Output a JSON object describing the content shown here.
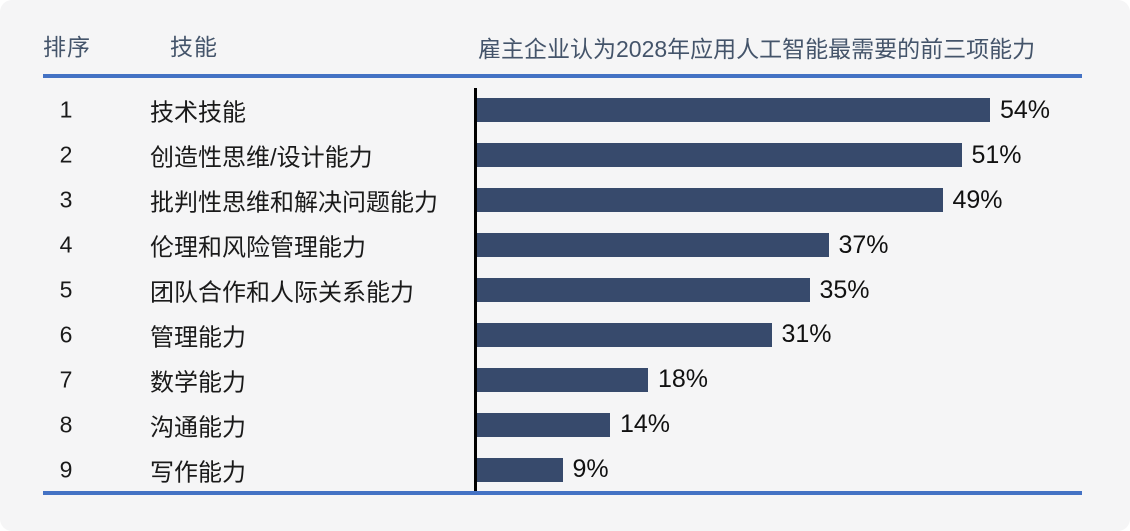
{
  "header": {
    "rank_label": "排序",
    "skill_label": "技能",
    "title": "雇主企业认为2028年应用人工智能最需要的前三项能力"
  },
  "colors": {
    "background": "#F5F5F6",
    "accent_line": "#4472C4",
    "header_text": "#44546A",
    "bar": "#374A6C",
    "axis": "#000000",
    "value_text": "#111111"
  },
  "chart_data": {
    "type": "bar",
    "orientation": "horizontal",
    "title": "雇主企业认为2028年应用人工智能最需要的前三项能力",
    "column_headers": [
      "排序",
      "技能"
    ],
    "ranks": [
      "1",
      "2",
      "3",
      "4",
      "5",
      "6",
      "7",
      "8",
      "9"
    ],
    "categories": [
      "技术技能",
      "创造性思维/设计能力",
      "批判性思维和解决问题能力",
      "伦理和风险管理能力",
      "团队合作和人际关系能力",
      "管理能力",
      "数学能力",
      "沟通能力",
      "写作能力"
    ],
    "values": [
      54,
      51,
      49,
      37,
      35,
      31,
      18,
      14,
      9
    ],
    "labels": [
      "54%",
      "51%",
      "49%",
      "37%",
      "35%",
      "31%",
      "18%",
      "14%",
      "9%"
    ],
    "value_suffix": "%",
    "xlim": [
      0,
      64
    ],
    "grid": false,
    "legend": false,
    "data_labels": true
  }
}
